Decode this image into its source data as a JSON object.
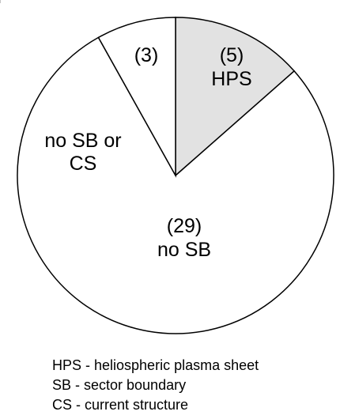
{
  "chart_data": {
    "type": "pie",
    "categories": [
      "HPS",
      "no SB",
      "no SB or CS"
    ],
    "values": [
      5,
      29,
      3
    ],
    "value_labels": [
      "(5)",
      "(29)",
      "(3)"
    ],
    "colors": [
      "#d4d4d4",
      "#ffffff",
      "#ffffff"
    ],
    "hatch": [
      true,
      false,
      false
    ],
    "notes": [
      "HPS - heliospheric plasma sheet",
      "SB - sector boundary",
      "CS - current structure"
    ]
  }
}
